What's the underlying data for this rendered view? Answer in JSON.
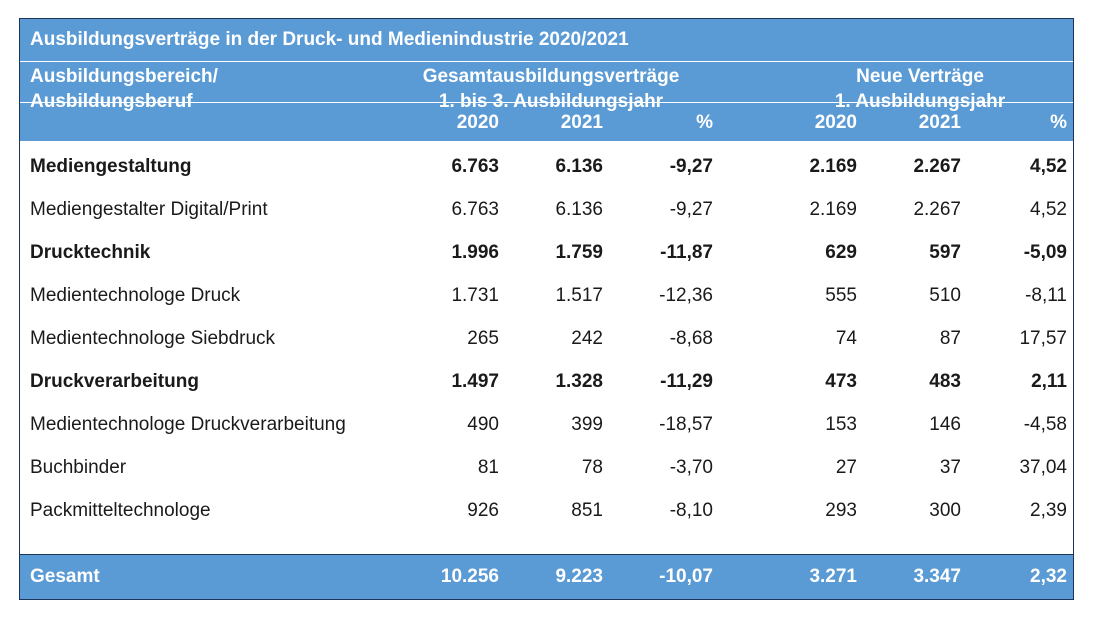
{
  "title": "Ausbildungsverträge in der Druck- und Medienindustrie 2020/2021",
  "header": {
    "col_label_line1": "Ausbildungsbereich/",
    "col_label_line2": "Ausbildungsberuf",
    "group1_line1": "Gesamtausbildungsverträge",
    "group1_line2": "1. bis 3. Ausbildungsjahr",
    "group2_line1": "Neue Verträge",
    "group2_line2": "1. Ausbildungsjahr",
    "years": [
      "2020",
      "2021",
      "%",
      "2020",
      "2021",
      "%"
    ]
  },
  "chart_data": {
    "type": "table",
    "title": "Ausbildungsverträge in der Druck- und Medienindustrie 2020/2021",
    "columns": [
      "Ausbildungsbereich/Ausbildungsberuf",
      "Gesamt 2020",
      "Gesamt 2021",
      "Gesamt %",
      "Neu 2020",
      "Neu 2021",
      "Neu %"
    ],
    "rows": [
      {
        "label": "Mediengestaltung",
        "bold": true,
        "values": [
          "6.763",
          "6.136",
          "-9,27",
          "2.169",
          "2.267",
          "4,52"
        ]
      },
      {
        "label": "Mediengestalter Digital/Print",
        "bold": false,
        "values": [
          "6.763",
          "6.136",
          "-9,27",
          "2.169",
          "2.267",
          "4,52"
        ]
      },
      {
        "label": "Drucktechnik",
        "bold": true,
        "values": [
          "1.996",
          "1.759",
          "-11,87",
          "629",
          "597",
          "-5,09"
        ]
      },
      {
        "label": "Medientechnologe Druck",
        "bold": false,
        "values": [
          "1.731",
          "1.517",
          "-12,36",
          "555",
          "510",
          "-8,11"
        ]
      },
      {
        "label": "Medientechnologe Siebdruck",
        "bold": false,
        "values": [
          "265",
          "242",
          "-8,68",
          "74",
          "87",
          "17,57"
        ]
      },
      {
        "label": "Druckverarbeitung",
        "bold": true,
        "values": [
          "1.497",
          "1.328",
          "-11,29",
          "473",
          "483",
          "2,11"
        ]
      },
      {
        "label": "Medientechnologe Druckverarbeitung",
        "bold": false,
        "values": [
          "490",
          "399",
          "-18,57",
          "153",
          "146",
          "-4,58"
        ]
      },
      {
        "label": "Buchbinder",
        "bold": false,
        "values": [
          "81",
          "78",
          "-3,70",
          "27",
          "37",
          "37,04"
        ]
      },
      {
        "label": "Packmitteltechnologe",
        "bold": false,
        "values": [
          "926",
          "851",
          "-8,10",
          "293",
          "300",
          "2,39"
        ]
      }
    ],
    "total": {
      "label": "Gesamt",
      "values": [
        "10.256",
        "9.223",
        "-10,07",
        "3.271",
        "3.347",
        "2,32"
      ]
    }
  },
  "colors": {
    "header_bg": "#5b9bd5",
    "header_text": "#ffffff",
    "border": "#1d3557",
    "body_text": "#1a1a1a"
  }
}
